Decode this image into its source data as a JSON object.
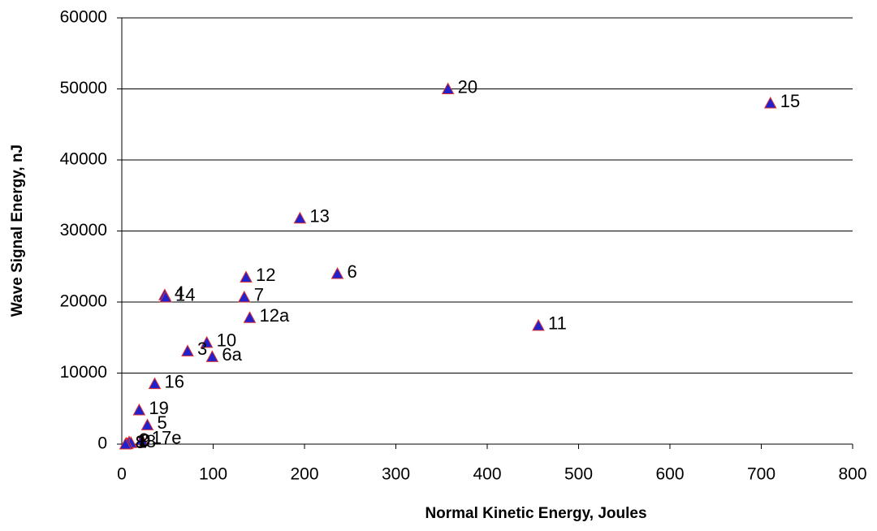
{
  "chart_data": {
    "type": "scatter",
    "x_label": "Normal Kinetic Energy, Joules",
    "y_label": "Wave Signal Energy, nJ",
    "series": [
      {
        "color": "#2222cc",
        "edge_color": "#e03030",
        "x": [
          357,
          710,
          195,
          236,
          136,
          134,
          47,
          48,
          140,
          456,
          93,
          72,
          99,
          36,
          19,
          28,
          22,
          8,
          10,
          5,
          6,
          4
        ],
        "values": [
          50000,
          48000,
          31800,
          24000,
          23500,
          20700,
          21000,
          20700,
          17800,
          16700,
          14300,
          13100,
          12300,
          8500,
          4800,
          2700,
          600,
          300,
          200,
          100,
          50,
          0
        ],
        "point_labels": [
          "20",
          "15",
          "13",
          "6",
          "12",
          "7",
          "4",
          "14",
          "12a",
          "11",
          "10",
          "3",
          "6a",
          "16",
          "19",
          "5",
          "17e",
          "2",
          "9",
          "18",
          "1",
          "8"
        ]
      }
    ],
    "xlim": [
      0,
      800
    ],
    "xticks": [
      0,
      100,
      200,
      300,
      400,
      500,
      600,
      700,
      800
    ],
    "ylim": [
      0,
      60000
    ],
    "yticks": [
      0,
      10000,
      20000,
      30000,
      40000,
      50000,
      60000
    ],
    "grid": true
  }
}
